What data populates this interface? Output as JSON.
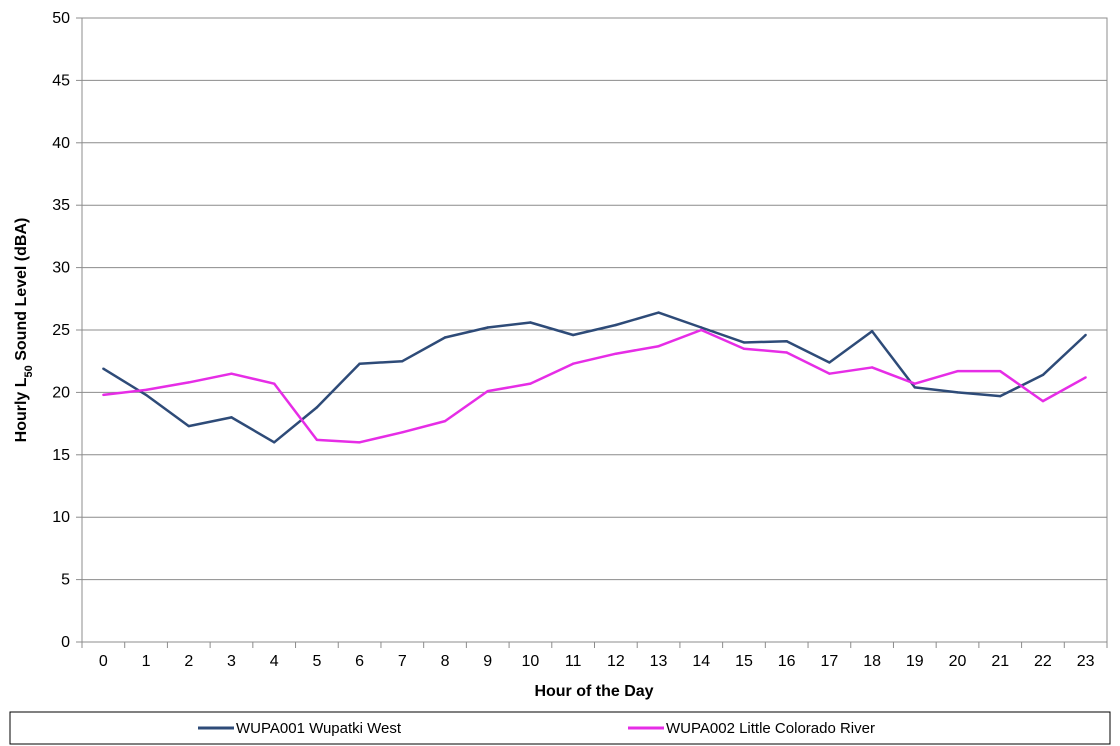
{
  "chart_data": {
    "type": "line",
    "xlabel": "Hour of the Day",
    "ylabel_prefix": "Hourly L",
    "ylabel_subscript": "50",
    "ylabel_suffix": " Sound Level (dBA)",
    "x": [
      0,
      1,
      2,
      3,
      4,
      5,
      6,
      7,
      8,
      9,
      10,
      11,
      12,
      13,
      14,
      15,
      16,
      17,
      18,
      19,
      20,
      21,
      22,
      23
    ],
    "ylim": [
      0,
      50
    ],
    "yticks": [
      0,
      5,
      10,
      15,
      20,
      25,
      30,
      35,
      40,
      45,
      50
    ],
    "grid": true,
    "legend_position": "bottom",
    "series": [
      {
        "name": "WUPA001 Wupatki West",
        "color": "#2e4b78",
        "values": [
          21.9,
          19.8,
          17.3,
          18.0,
          16.0,
          18.8,
          22.3,
          22.5,
          24.4,
          25.2,
          25.6,
          24.6,
          25.4,
          26.4,
          25.2,
          24.0,
          24.1,
          22.4,
          24.9,
          20.4,
          20.0,
          19.7,
          21.4,
          24.6
        ]
      },
      {
        "name": "WUPA002 Little Colorado River",
        "color": "#e62de6",
        "values": [
          19.8,
          20.2,
          20.8,
          21.5,
          20.7,
          16.2,
          16.0,
          16.8,
          17.7,
          20.1,
          20.7,
          22.3,
          23.1,
          23.7,
          25.0,
          23.5,
          23.2,
          21.5,
          22.0,
          20.7,
          21.7,
          21.7,
          19.3,
          21.2
        ]
      }
    ]
  }
}
